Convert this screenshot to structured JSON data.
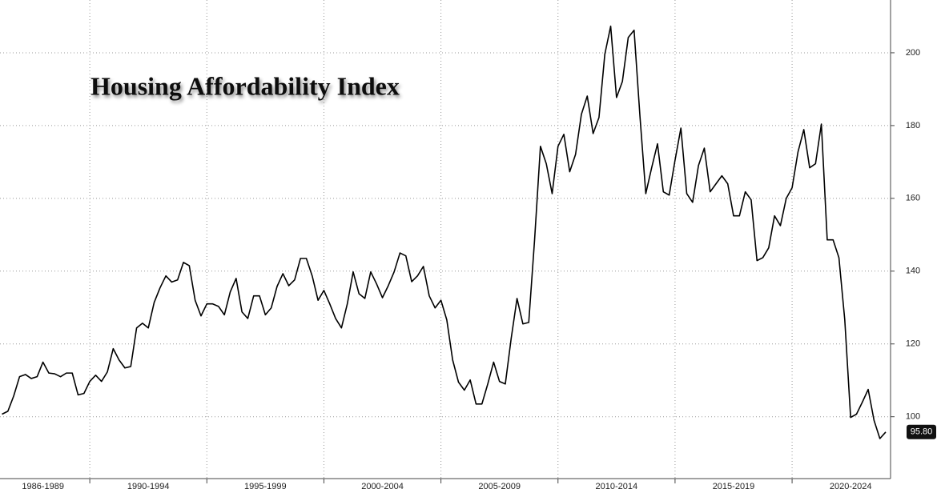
{
  "chart_data": {
    "type": "line",
    "title": "Housing Affordability Index",
    "categories": [
      null,
      null,
      null,
      null,
      null,
      null,
      null,
      "1986-1989",
      null,
      null,
      null,
      null,
      null,
      null,
      null,
      null,
      null,
      null,
      null,
      null,
      null,
      null,
      null,
      null,
      null,
      "1990-1994",
      null,
      null,
      null,
      null,
      null,
      null,
      null,
      null,
      null,
      null,
      null,
      null,
      null,
      null,
      null,
      null,
      null,
      null,
      null,
      "1995-1999",
      null,
      null,
      null,
      null,
      null,
      null,
      null,
      null,
      null,
      null,
      null,
      null,
      null,
      null,
      null,
      null,
      null,
      null,
      null,
      "2000-2004",
      null,
      null,
      null,
      null,
      null,
      null,
      null,
      null,
      null,
      null,
      null,
      null,
      null,
      null,
      null,
      null,
      null,
      null,
      null,
      "2005-2009",
      null,
      null,
      null,
      null,
      null,
      null,
      null,
      null,
      null,
      null,
      null,
      null,
      null,
      null,
      null,
      null,
      null,
      null,
      null,
      "2010-2014",
      null,
      null,
      null,
      null,
      null,
      null,
      null,
      null,
      null,
      null,
      null,
      null,
      null,
      null,
      null,
      null,
      null,
      null,
      null,
      "2015-2019",
      null,
      null,
      null,
      null,
      null,
      null,
      null,
      null,
      null,
      null,
      null,
      null,
      null,
      null,
      null,
      null,
      null,
      null,
      null,
      "2020-2024",
      null,
      null,
      null,
      null,
      null,
      null
    ],
    "series": [
      {
        "color": "#000000",
        "values": [
          100.7,
          101.5,
          105.7,
          111,
          111.6,
          110.5,
          111,
          115,
          112,
          111.8,
          111,
          112,
          112,
          106,
          106.4,
          109.7,
          111.4,
          109.7,
          112.3,
          118.7,
          115.6,
          113.4,
          113.8,
          124.4,
          125.7,
          124.4,
          131.4,
          135.4,
          138.7,
          137,
          137.6,
          142.4,
          141.5,
          132,
          127.7,
          131,
          131,
          130.3,
          128,
          134.3,
          138,
          128.8,
          127,
          133.2,
          133.2,
          128,
          129.9,
          135.8,
          139.3,
          136,
          137.6,
          143.5,
          143.5,
          138.7,
          132,
          134.7,
          131,
          127,
          124.4,
          131,
          139.8,
          133.8,
          132.5,
          139.8,
          136.5,
          132.7,
          136,
          139.8,
          145,
          144.2,
          137.1,
          138.7,
          141.3,
          133.2,
          129.9,
          132,
          126.6,
          115.6,
          109.5,
          107.3,
          110.1,
          103.5,
          103.5,
          109,
          115,
          109.7,
          109,
          121.5,
          132.5,
          125.5,
          125.9,
          148.6,
          174.3,
          169.5,
          161.3,
          174.3,
          177.6,
          167.3,
          172.1,
          183.1,
          188.1,
          177.8,
          182.2,
          199.6,
          207.3,
          187.7,
          192.1,
          204.2,
          206.2,
          182.6,
          161.3,
          168.4,
          175,
          161.8,
          160.9,
          170.5,
          179.3,
          161.3,
          158.9,
          169,
          173.8,
          161.8,
          164,
          166.2,
          164,
          155.2,
          155.2,
          161.8,
          159.6,
          142.9,
          143.7,
          146.4,
          155.2,
          152.5,
          160,
          162.9,
          172.7,
          178.9,
          168.4,
          169.5,
          180.4,
          148.6,
          148.6,
          143.7,
          126.6,
          99.8,
          100.7,
          104,
          107.5,
          99,
          94,
          95.8
        ],
        "value_labels": [
          null,
          null,
          null,
          null,
          null,
          null,
          null,
          null,
          null,
          null,
          null,
          null,
          null,
          null,
          null,
          null,
          null,
          null,
          null,
          null,
          null,
          null,
          null,
          null,
          null,
          null,
          null,
          null,
          null,
          null,
          null,
          null,
          null,
          null,
          null,
          null,
          null,
          null,
          null,
          null,
          null,
          null,
          null,
          null,
          null,
          null,
          null,
          null,
          null,
          null,
          null,
          null,
          null,
          null,
          null,
          null,
          null,
          null,
          null,
          null,
          null,
          null,
          null,
          null,
          null,
          null,
          null,
          null,
          null,
          null,
          null,
          null,
          null,
          null,
          null,
          null,
          null,
          null,
          null,
          null,
          null,
          null,
          null,
          null,
          null,
          null,
          null,
          null,
          null,
          null,
          null,
          null,
          null,
          null,
          null,
          null,
          null,
          null,
          null,
          null,
          null,
          null,
          null,
          null,
          null,
          null,
          null,
          null,
          null,
          null,
          null,
          null,
          null,
          null,
          null,
          null,
          null,
          null,
          null,
          null,
          null,
          null,
          null,
          null,
          null,
          null,
          null,
          null,
          null,
          null,
          null,
          null,
          null,
          null,
          null,
          null,
          null,
          null,
          null,
          null,
          null,
          null,
          null,
          null,
          null,
          null,
          null,
          null,
          null,
          null,
          null,
          "95.80"
        ]
      }
    ],
    "ylim": [
      83,
      214.5
    ],
    "yticks": [
      100,
      120,
      140,
      160,
      180,
      200
    ],
    "grid": true
  }
}
